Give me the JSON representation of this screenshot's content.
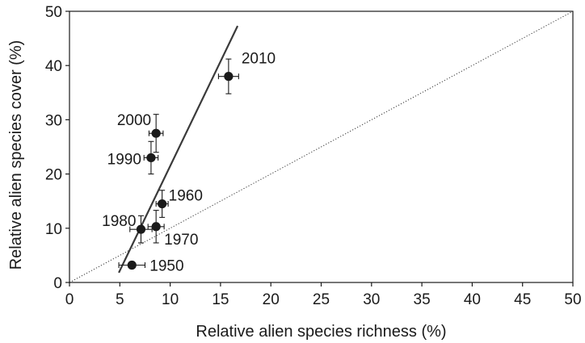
{
  "chart_data": {
    "type": "scatter",
    "xlabel": "Relative alien species richness (%)",
    "ylabel": "Relative alien species cover (%)",
    "xlim": [
      0,
      50
    ],
    "ylim": [
      0,
      50
    ],
    "xticks": [
      0,
      5,
      10,
      15,
      20,
      25,
      30,
      35,
      40,
      45,
      50
    ],
    "yticks": [
      0,
      10,
      20,
      30,
      40,
      50
    ],
    "grid": false,
    "points": [
      {
        "label": "1950",
        "x": 6.2,
        "y": 3.2,
        "xerr": 1.3,
        "yerr": 0.5
      },
      {
        "label": "1960",
        "x": 9.2,
        "y": 14.5,
        "xerr": 0.6,
        "yerr": 2.5
      },
      {
        "label": "1970",
        "x": 8.6,
        "y": 10.3,
        "xerr": 0.8,
        "yerr": 3.0
      },
      {
        "label": "1980",
        "x": 7.1,
        "y": 9.8,
        "xerr": 1.1,
        "yerr": 2.5
      },
      {
        "label": "1990",
        "x": 8.1,
        "y": 23.0,
        "xerr": 0.7,
        "yerr": 3.0
      },
      {
        "label": "2000",
        "x": 8.6,
        "y": 27.5,
        "xerr": 0.7,
        "yerr": 3.5
      },
      {
        "label": "2010",
        "x": 15.8,
        "y": 38.0,
        "xerr": 1.0,
        "yerr": 3.2
      }
    ],
    "regression_line": {
      "x": [
        4.9,
        16.7
      ],
      "y": [
        1.8,
        47.3
      ]
    },
    "reference_line": {
      "x": [
        0,
        50
      ],
      "y": [
        0,
        50
      ],
      "style": "dotted"
    }
  }
}
